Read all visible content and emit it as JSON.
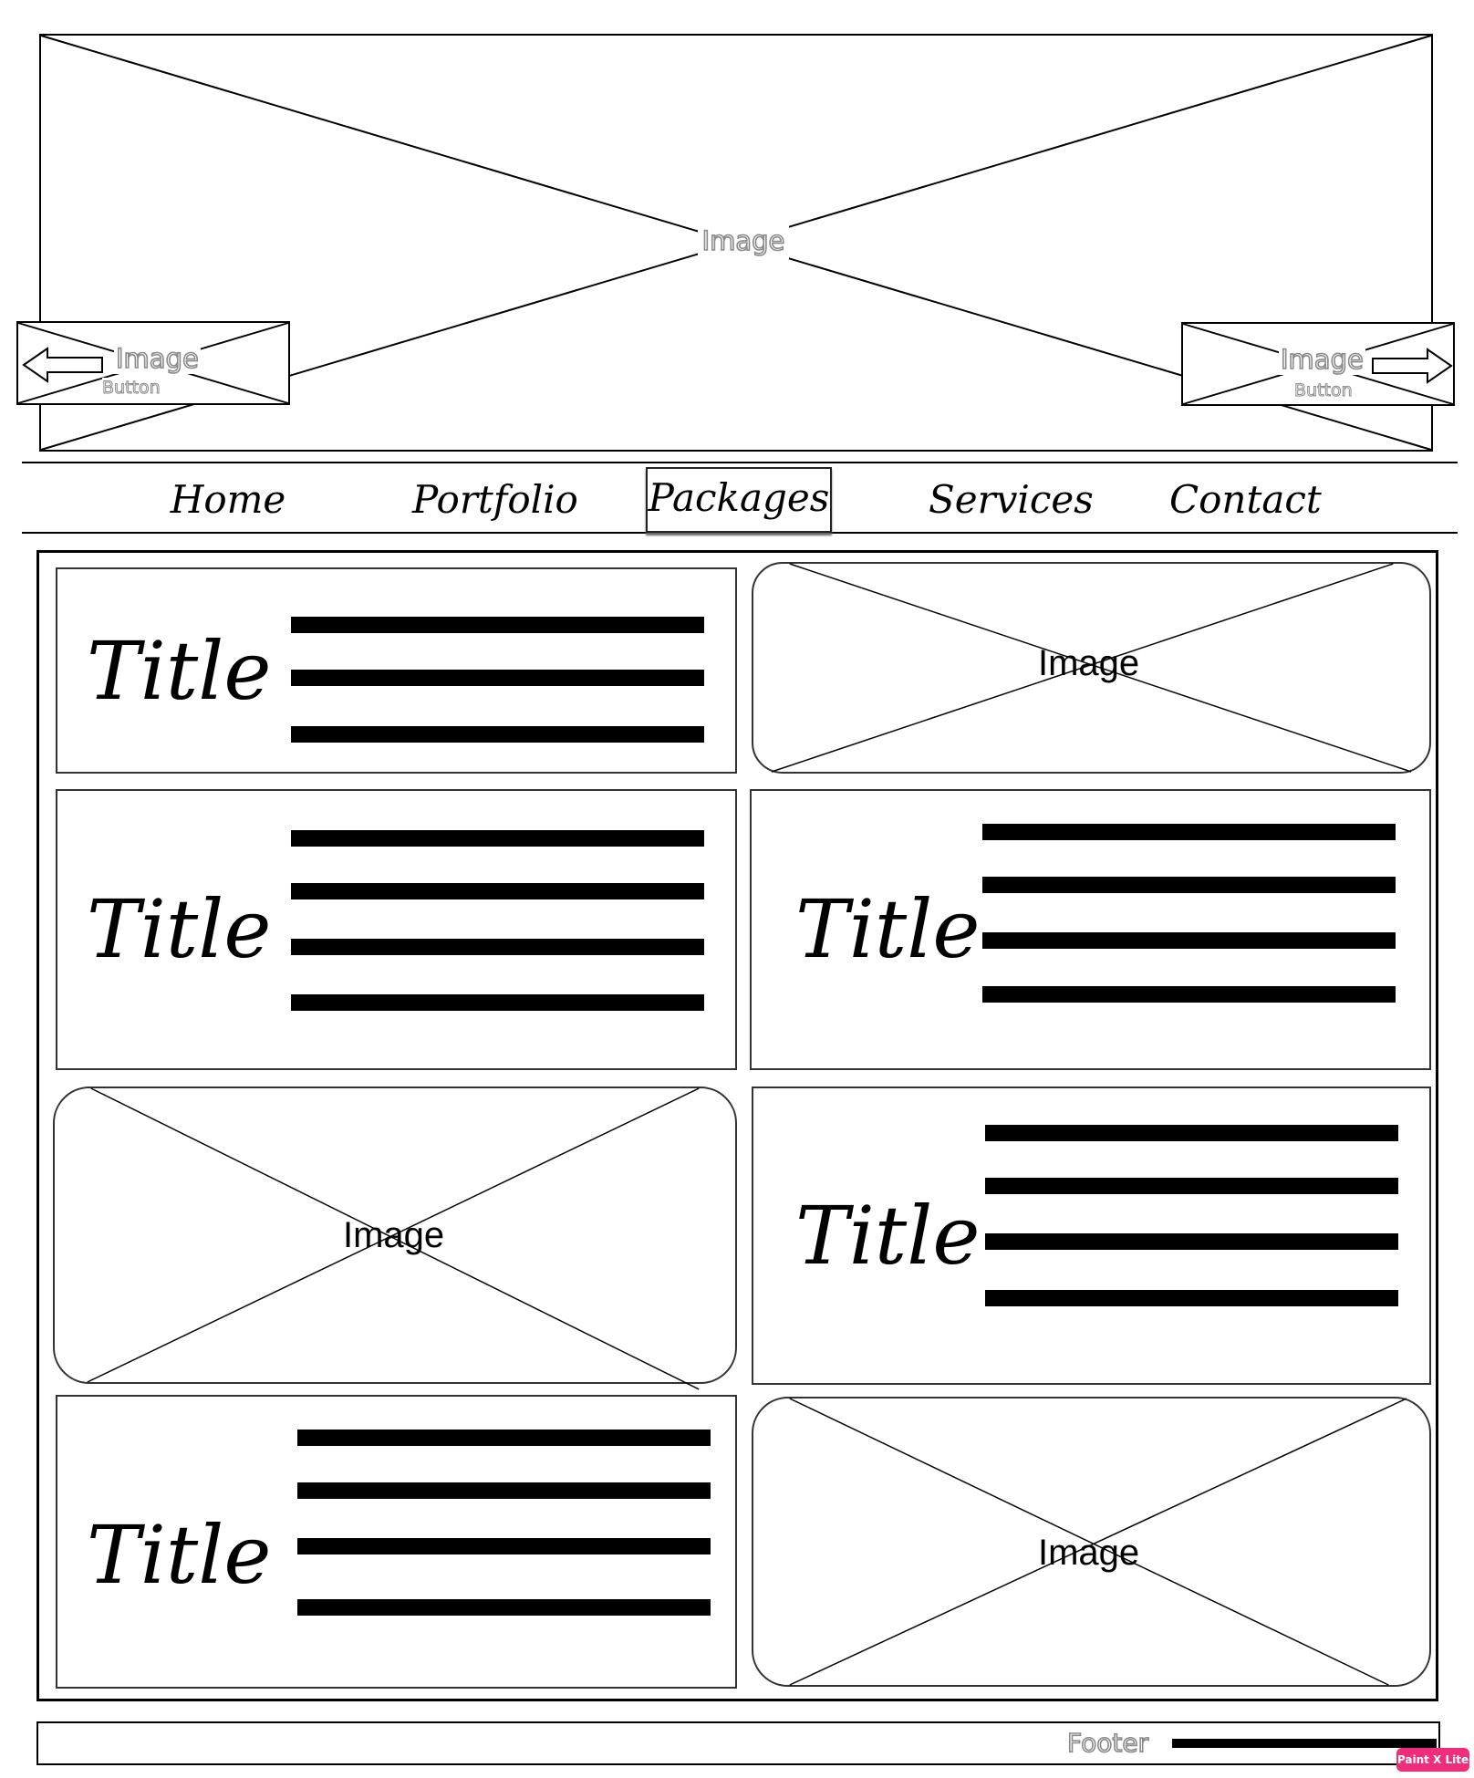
{
  "hero": {
    "label": "Image",
    "prev_button": {
      "label": "Image",
      "sublabel": "Button"
    },
    "next_button": {
      "label": "Image",
      "sublabel": "Button"
    }
  },
  "nav": {
    "items": [
      {
        "label": "Home"
      },
      {
        "label": "Portfolio"
      },
      {
        "label": "Packages"
      },
      {
        "label": "Services"
      },
      {
        "label": "Contact"
      }
    ],
    "active": "Packages"
  },
  "content": {
    "cards": [
      {
        "type": "text",
        "title": "Title"
      },
      {
        "type": "image",
        "label": "Image"
      },
      {
        "type": "text",
        "title": "Title"
      },
      {
        "type": "text",
        "title": "Title"
      },
      {
        "type": "image",
        "label": "Image"
      },
      {
        "type": "text",
        "title": "Title"
      },
      {
        "type": "text",
        "title": "Title"
      },
      {
        "type": "image",
        "label": "Image"
      }
    ]
  },
  "footer": {
    "label": "Footer"
  },
  "watermark": {
    "label": "Paint X Lite"
  }
}
